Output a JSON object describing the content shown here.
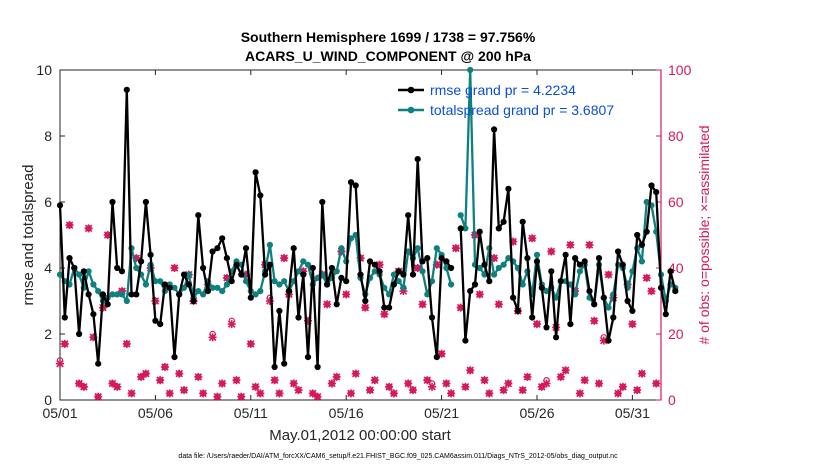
{
  "chart_data": {
    "type": "line",
    "title": "Southern Hemisphere 1699 / 1738 = 97.756%",
    "subtitle": "ACARS_U_WIND_COMPONENT @ 200 hPa",
    "xlabel": "May.01,2012 00:00:00 start",
    "ylabel": "rmse and totalspread",
    "ylabel_right": "# of obs: o=possible; ×=assimilated",
    "footnote": "data file: /Users/raeder/DAI/ATM_forcXX/CAM6_setup/f.e21.FHIST_BGC.f09_025.CAM6assim.011/Diags_NTrS_2012-05/obs_diag_output.nc",
    "ylim": [
      0,
      10
    ],
    "ylim_right": [
      0,
      100
    ],
    "xlim": [
      0,
      31.5
    ],
    "yticks": [
      "0",
      "2",
      "4",
      "6",
      "8",
      "10"
    ],
    "yticks_right": [
      "0",
      "20",
      "40",
      "60",
      "80",
      "100"
    ],
    "xtick_days": [
      0,
      5,
      10,
      15,
      20,
      25,
      30
    ],
    "xtick_labels": [
      "05/01",
      "05/06",
      "05/11",
      "05/16",
      "05/21",
      "05/26",
      "05/31"
    ],
    "legend": [
      "rmse grand pr = 4.2234",
      "totalspread grand pr = 3.6807"
    ],
    "colors": {
      "rmse": "#000000",
      "spread": "#0f8080",
      "obs": "#d6185c",
      "legend_text": "#0b4fd6",
      "axis": "#262626"
    },
    "series": [
      {
        "name": "rmse",
        "values": [
          5.9,
          2.5,
          4.3,
          4.0,
          2.0,
          3.9,
          3.2,
          2.6,
          1.1,
          3.2,
          2.9,
          6.0,
          4.0,
          3.9,
          9.4,
          3.2,
          3.2,
          4.2,
          6.0,
          4.4,
          2.4,
          2.3,
          3.5,
          3.4,
          1.3,
          3.2,
          3.8,
          3.5,
          3.0,
          5.6,
          4.0,
          3.3,
          4.5,
          4.6,
          4.9,
          4.3,
          3.6,
          4.1,
          3.8,
          4.6,
          3.1,
          6.9,
          6.2,
          3.8,
          4.1,
          1.0,
          2.7,
          1.1,
          3.3,
          4.6,
          2.5,
          3.8,
          1.3,
          4.0,
          1.0,
          6.0,
          3.5,
          4.0,
          2.9,
          3.7,
          3.6,
          6.6,
          6.5,
          3.8,
          3.0,
          4.2,
          4.1,
          3.9,
          2.8,
          2.8,
          3.5,
          3.9,
          3.8,
          5.6,
          3.8,
          7.3,
          4.2,
          4.3,
          2.5,
          1.3,
          4.3,
          4.2,
          4.0,
          null,
          5.2,
          1.8,
          3.3,
          3.5,
          5.1,
          4.1,
          3.6,
          8.2,
          5.2,
          5.4,
          6.4,
          3.1,
          2.7,
          5.4,
          4.3,
          2.5,
          4.2,
          3.4,
          2.2,
          3.9,
          1.9,
          3.6,
          4.4,
          2.3,
          4.3,
          4.1,
          4.2,
          3.3,
          2.9,
          4.3,
          3.1,
          1.8,
          2.5,
          4.5,
          4.1,
          3.0,
          2.7,
          5.0,
          4.7,
          5.1,
          6.5,
          6.3,
          3.4,
          2.6,
          3.9,
          3.3
        ],
        "start": 0.0,
        "step": 0.25
      },
      {
        "name": "totalspread",
        "values": [
          3.8,
          3.6,
          3.5,
          4.0,
          3.8,
          3.4,
          3.9,
          3.5,
          3.3,
          3.0,
          3.1,
          3.2,
          3.2,
          3.2,
          3.0,
          4.6,
          4.0,
          3.8,
          3.5,
          4.1,
          3.6,
          3.6,
          3.3,
          3.5,
          3.4,
          3.2,
          3.4,
          3.8,
          3.1,
          3.3,
          3.2,
          3.6,
          3.4,
          3.4,
          3.3,
          3.5,
          3.9,
          4.2,
          4.1,
          3.6,
          3.3,
          3.2,
          3.3,
          3.9,
          4.7,
          3.6,
          3.5,
          3.6,
          3.3,
          3.6,
          3.9,
          4.2,
          4.1,
          3.5,
          3.7,
          3.8,
          3.5,
          3.7,
          3.9,
          4.6,
          4.2,
          4.9,
          5.0,
          3.7,
          3.2,
          3.7,
          3.9,
          3.8,
          3.4,
          3.2,
          3.8,
          3.6,
          3.4,
          4.5,
          4.3,
          4.6,
          3.9,
          3.2,
          3.6,
          4.6,
          4.4,
          4.0,
          3.5,
          null,
          5.6,
          5.2,
          10.0,
          4.1,
          4.0,
          3.8,
          4.6,
          3.8,
          4.0,
          4.1,
          4.3,
          4.2,
          4.0,
          3.5,
          3.9,
          3.2,
          4.4,
          3.5,
          3.3,
          3.4,
          3.1,
          3.6,
          3.6,
          3.5,
          3.2,
          3.9,
          4.1,
          3.1,
          2.9,
          4.1,
          3.1,
          2.8,
          3.2,
          4.1,
          4.0,
          3.4,
          3.9,
          4.6,
          4.2,
          6.0,
          5.9,
          5.1,
          3.8,
          3.0,
          3.5,
          3.4
        ],
        "start": 0.0,
        "step": 0.25
      }
    ],
    "obs_possible": [
      [
        0.0,
        12
      ],
      [
        0.25,
        17
      ],
      [
        0.5,
        53
      ],
      [
        1.0,
        5
      ],
      [
        1.25,
        4
      ],
      [
        1.5,
        52
      ],
      [
        1.75,
        19
      ],
      [
        2.0,
        1
      ],
      [
        2.25,
        28
      ],
      [
        2.5,
        50
      ],
      [
        2.75,
        5
      ],
      [
        3.0,
        4
      ],
      [
        3.25,
        33
      ],
      [
        3.5,
        17
      ],
      [
        3.75,
        2
      ],
      [
        4.0,
        43
      ],
      [
        4.25,
        7
      ],
      [
        4.5,
        8
      ],
      [
        4.75,
        40
      ],
      [
        5.0,
        30
      ],
      [
        5.25,
        6
      ],
      [
        5.5,
        10
      ],
      [
        5.75,
        2
      ],
      [
        6.0,
        40
      ],
      [
        6.25,
        8
      ],
      [
        6.5,
        3
      ],
      [
        6.75,
        38
      ],
      [
        7.0,
        30
      ],
      [
        7.25,
        7
      ],
      [
        7.5,
        2
      ],
      [
        7.75,
        35
      ],
      [
        8.0,
        20
      ],
      [
        8.25,
        1
      ],
      [
        8.5,
        5
      ],
      [
        8.75,
        37
      ],
      [
        9.0,
        24
      ],
      [
        9.25,
        6
      ],
      [
        9.5,
        1
      ],
      [
        9.75,
        38
      ],
      [
        10.0,
        17
      ],
      [
        10.25,
        4
      ],
      [
        10.5,
        2
      ],
      [
        10.75,
        41
      ],
      [
        11.0,
        31
      ],
      [
        11.25,
        6
      ],
      [
        11.5,
        2
      ],
      [
        11.75,
        43
      ],
      [
        12.0,
        32
      ],
      [
        12.25,
        5
      ],
      [
        12.5,
        3
      ],
      [
        12.75,
        39
      ],
      [
        13.0,
        24
      ],
      [
        13.25,
        2
      ],
      [
        13.5,
        1
      ],
      [
        13.75,
        38
      ],
      [
        14.0,
        29
      ],
      [
        14.25,
        5
      ],
      [
        14.5,
        7
      ],
      [
        14.75,
        45
      ],
      [
        15.0,
        32
      ],
      [
        15.25,
        2
      ],
      [
        15.5,
        8
      ],
      [
        15.75,
        43
      ],
      [
        16.0,
        28
      ],
      [
        16.25,
        3
      ],
      [
        16.5,
        6
      ],
      [
        16.75,
        41
      ],
      [
        17.0,
        26
      ],
      [
        17.25,
        4
      ],
      [
        17.5,
        2
      ],
      [
        17.75,
        39
      ],
      [
        18.0,
        34
      ],
      [
        18.25,
        5
      ],
      [
        18.5,
        3
      ],
      [
        18.75,
        40
      ],
      [
        19.0,
        29
      ],
      [
        19.25,
        6
      ],
      [
        19.5,
        5
      ],
      [
        19.75,
        41
      ],
      [
        20.0,
        14
      ],
      [
        20.25,
        5
      ],
      [
        20.5,
        2
      ],
      [
        20.75,
        46
      ],
      [
        21.0,
        28
      ],
      [
        21.25,
        4
      ],
      [
        21.5,
        9
      ],
      [
        21.75,
        50
      ],
      [
        22.0,
        32
      ],
      [
        22.25,
        6
      ],
      [
        22.5,
        2
      ],
      [
        22.75,
        43
      ],
      [
        23.0,
        29
      ],
      [
        23.25,
        3
      ],
      [
        23.5,
        5
      ],
      [
        23.75,
        48
      ],
      [
        24.0,
        27
      ],
      [
        24.25,
        3
      ],
      [
        24.5,
        7
      ],
      [
        24.75,
        49
      ],
      [
        25.0,
        23
      ],
      [
        25.25,
        4
      ],
      [
        25.5,
        6
      ],
      [
        25.75,
        45
      ],
      [
        26.0,
        22
      ],
      [
        26.25,
        7
      ],
      [
        26.5,
        9
      ],
      [
        26.75,
        47
      ],
      [
        27.0,
        33
      ],
      [
        27.25,
        2
      ],
      [
        27.5,
        6
      ],
      [
        27.75,
        47
      ],
      [
        28.0,
        24
      ],
      [
        28.25,
        5
      ],
      [
        28.5,
        19
      ],
      [
        28.75,
        38
      ],
      [
        29.0,
        31
      ],
      [
        29.25,
        2
      ],
      [
        29.5,
        4
      ],
      [
        29.75,
        35
      ],
      [
        30.0,
        23
      ],
      [
        30.25,
        3
      ],
      [
        30.5,
        8
      ],
      [
        30.75,
        37
      ],
      [
        31.0,
        33
      ],
      [
        31.25,
        5
      ]
    ],
    "obs_assimilated": [
      [
        0.0,
        11
      ],
      [
        0.25,
        17
      ],
      [
        0.5,
        53
      ],
      [
        1.0,
        5
      ],
      [
        1.25,
        4
      ],
      [
        1.5,
        52
      ],
      [
        1.75,
        19
      ],
      [
        2.0,
        1
      ],
      [
        2.25,
        28
      ],
      [
        2.5,
        50
      ],
      [
        2.75,
        5
      ],
      [
        3.0,
        4
      ],
      [
        3.25,
        33
      ],
      [
        3.5,
        17
      ],
      [
        3.75,
        2
      ],
      [
        4.0,
        43
      ],
      [
        4.25,
        7
      ],
      [
        4.5,
        8
      ],
      [
        4.75,
        40
      ],
      [
        5.0,
        30
      ],
      [
        5.25,
        6
      ],
      [
        5.5,
        10
      ],
      [
        5.75,
        2
      ],
      [
        6.0,
        40
      ],
      [
        6.25,
        8
      ],
      [
        6.5,
        3
      ],
      [
        6.75,
        38
      ],
      [
        7.0,
        30
      ],
      [
        7.25,
        7
      ],
      [
        7.5,
        2
      ],
      [
        7.75,
        35
      ],
      [
        8.0,
        19
      ],
      [
        8.25,
        1
      ],
      [
        8.5,
        5
      ],
      [
        8.75,
        37
      ],
      [
        9.0,
        23
      ],
      [
        9.25,
        6
      ],
      [
        9.5,
        1
      ],
      [
        9.75,
        38
      ],
      [
        10.0,
        17
      ],
      [
        10.25,
        4
      ],
      [
        10.5,
        2
      ],
      [
        10.75,
        41
      ],
      [
        11.0,
        30
      ],
      [
        11.25,
        6
      ],
      [
        11.5,
        2
      ],
      [
        11.75,
        43
      ],
      [
        12.0,
        32
      ],
      [
        12.25,
        5
      ],
      [
        12.5,
        3
      ],
      [
        12.75,
        39
      ],
      [
        13.0,
        24
      ],
      [
        13.25,
        2
      ],
      [
        13.5,
        1
      ],
      [
        13.75,
        38
      ],
      [
        14.0,
        29
      ],
      [
        14.25,
        5
      ],
      [
        14.5,
        7
      ],
      [
        14.75,
        45
      ],
      [
        15.0,
        32
      ],
      [
        15.25,
        2
      ],
      [
        15.5,
        8
      ],
      [
        15.75,
        43
      ],
      [
        16.0,
        28
      ],
      [
        16.25,
        3
      ],
      [
        16.5,
        6
      ],
      [
        16.75,
        41
      ],
      [
        17.0,
        26
      ],
      [
        17.25,
        4
      ],
      [
        17.5,
        2
      ],
      [
        17.75,
        39
      ],
      [
        18.0,
        33
      ],
      [
        18.25,
        5
      ],
      [
        18.5,
        3
      ],
      [
        18.75,
        40
      ],
      [
        19.0,
        29
      ],
      [
        19.25,
        6
      ],
      [
        19.5,
        4
      ],
      [
        19.75,
        41
      ],
      [
        20.0,
        14
      ],
      [
        20.25,
        5
      ],
      [
        20.5,
        2
      ],
      [
        20.75,
        46
      ],
      [
        21.0,
        28
      ],
      [
        21.25,
        4
      ],
      [
        21.5,
        9
      ],
      [
        21.75,
        50
      ],
      [
        22.0,
        32
      ],
      [
        22.25,
        6
      ],
      [
        22.5,
        2
      ],
      [
        22.75,
        43
      ],
      [
        23.0,
        29
      ],
      [
        23.25,
        3
      ],
      [
        23.5,
        5
      ],
      [
        23.75,
        48
      ],
      [
        24.0,
        27
      ],
      [
        24.25,
        3
      ],
      [
        24.5,
        7
      ],
      [
        24.75,
        49
      ],
      [
        25.0,
        23
      ],
      [
        25.25,
        4
      ],
      [
        25.5,
        5
      ],
      [
        25.75,
        45
      ],
      [
        26.0,
        22
      ],
      [
        26.25,
        7
      ],
      [
        26.5,
        9
      ],
      [
        26.75,
        47
      ],
      [
        27.0,
        33
      ],
      [
        27.25,
        2
      ],
      [
        27.5,
        6
      ],
      [
        27.75,
        47
      ],
      [
        28.0,
        24
      ],
      [
        28.25,
        5
      ],
      [
        28.5,
        18
      ],
      [
        28.75,
        38
      ],
      [
        29.0,
        31
      ],
      [
        29.25,
        2
      ],
      [
        29.5,
        4
      ],
      [
        29.75,
        35
      ],
      [
        30.0,
        23
      ],
      [
        30.25,
        3
      ],
      [
        30.5,
        8
      ],
      [
        30.75,
        37
      ],
      [
        31.0,
        33
      ],
      [
        31.25,
        5
      ]
    ]
  }
}
